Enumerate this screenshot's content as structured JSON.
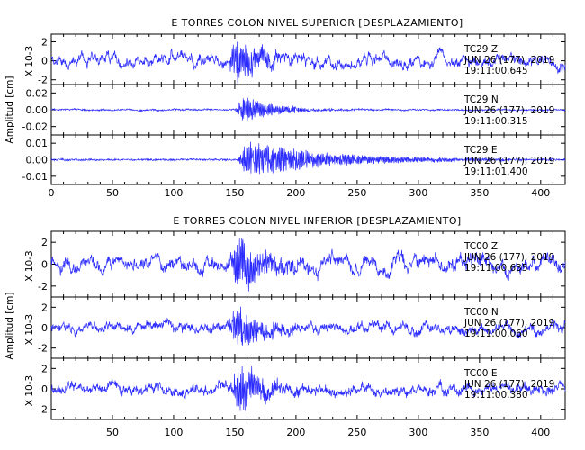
{
  "colors": {
    "trace": "#2b2bff",
    "axis": "#000000",
    "background": "#ffffff"
  },
  "chart_data": [
    {
      "type": "line",
      "title": "E TORRES COLON NIVEL SUPERIOR [DESPLAZAMIENTO]",
      "xlim": [
        0,
        420
      ],
      "x_ticks": [
        "0",
        "50",
        "100",
        "150",
        "200",
        "250",
        "300",
        "350",
        "400"
      ],
      "shared_ylabel": "Amplitud [cm]",
      "panels": [
        {
          "component": "Z",
          "annotation": [
            "TC29   Z",
            "JUN 26 (177), 2019",
            "19:11:00.645"
          ],
          "ylabel": "X 10-3",
          "ylim": [
            -2.5,
            2.8
          ],
          "y_ticks": [
            "2",
            "0",
            "-2"
          ],
          "envelope": {
            "noise": 0.35,
            "peak_time": 152,
            "peak_amplitude": 2.6,
            "duration": 20,
            "long_period": 0.6
          }
        },
        {
          "component": "N",
          "annotation": [
            "TC29   N",
            "JUN 26 (177), 2019",
            "19:11:00.315"
          ],
          "ylabel": "",
          "ylim": [
            -0.03,
            0.03
          ],
          "y_ticks": [
            "0.02",
            "0.00",
            "-0.02"
          ],
          "envelope": {
            "noise": 0.001,
            "peak_time": 158,
            "peak_amplitude": 0.018,
            "duration": 25,
            "long_period": 0.0005
          }
        },
        {
          "component": "E",
          "annotation": [
            "TC29   E",
            "JUN 26 (177), 2019",
            "19:11:01.400"
          ],
          "ylabel": "",
          "ylim": [
            -0.015,
            0.015
          ],
          "y_ticks": [
            "0.01",
            "0.00",
            "-0.01"
          ],
          "envelope": {
            "noise": 0.0006,
            "peak_time": 160,
            "peak_amplitude": 0.012,
            "duration": 70,
            "long_period": 0.0002
          }
        }
      ]
    },
    {
      "type": "line",
      "title": "E TORRES COLON NIVEL INFERIOR [DESPLAZAMIENTO]",
      "xlim": [
        0,
        420
      ],
      "x_ticks": [
        "50",
        "100",
        "150",
        "200",
        "250",
        "300",
        "350",
        "400"
      ],
      "shared_ylabel": "Amplitud [cm]",
      "panels": [
        {
          "component": "Z",
          "annotation": [
            "TC00   Z",
            "JUN 26 (177), 2019",
            "19:11:00.635"
          ],
          "ylabel": "X 10-3",
          "ylim": [
            -3,
            3
          ],
          "y_ticks": [
            "2",
            "0",
            "-2"
          ],
          "envelope": {
            "noise": 0.4,
            "peak_time": 153,
            "peak_amplitude": 2.7,
            "duration": 22,
            "long_period": 0.6
          }
        },
        {
          "component": "N",
          "annotation": [
            "TC00   N",
            "JUN 26 (177), 2019",
            "19:11:00.060"
          ],
          "ylabel": "X 10-3",
          "ylim": [
            -3,
            3
          ],
          "y_ticks": [
            "2",
            "0",
            "-2"
          ],
          "envelope": {
            "noise": 0.35,
            "peak_time": 152,
            "peak_amplitude": 2.6,
            "duration": 20,
            "long_period": 0.4
          }
        },
        {
          "component": "E",
          "annotation": [
            "TC00   E",
            "JUN 26 (177), 2019",
            "19:11:00.380"
          ],
          "ylabel": "X 10-3",
          "ylim": [
            -3,
            3
          ],
          "y_ticks": [
            "2",
            "0",
            "-2"
          ],
          "envelope": {
            "noise": 0.4,
            "peak_time": 154,
            "peak_amplitude": 2.8,
            "duration": 20,
            "long_period": 0.4
          }
        }
      ]
    }
  ]
}
